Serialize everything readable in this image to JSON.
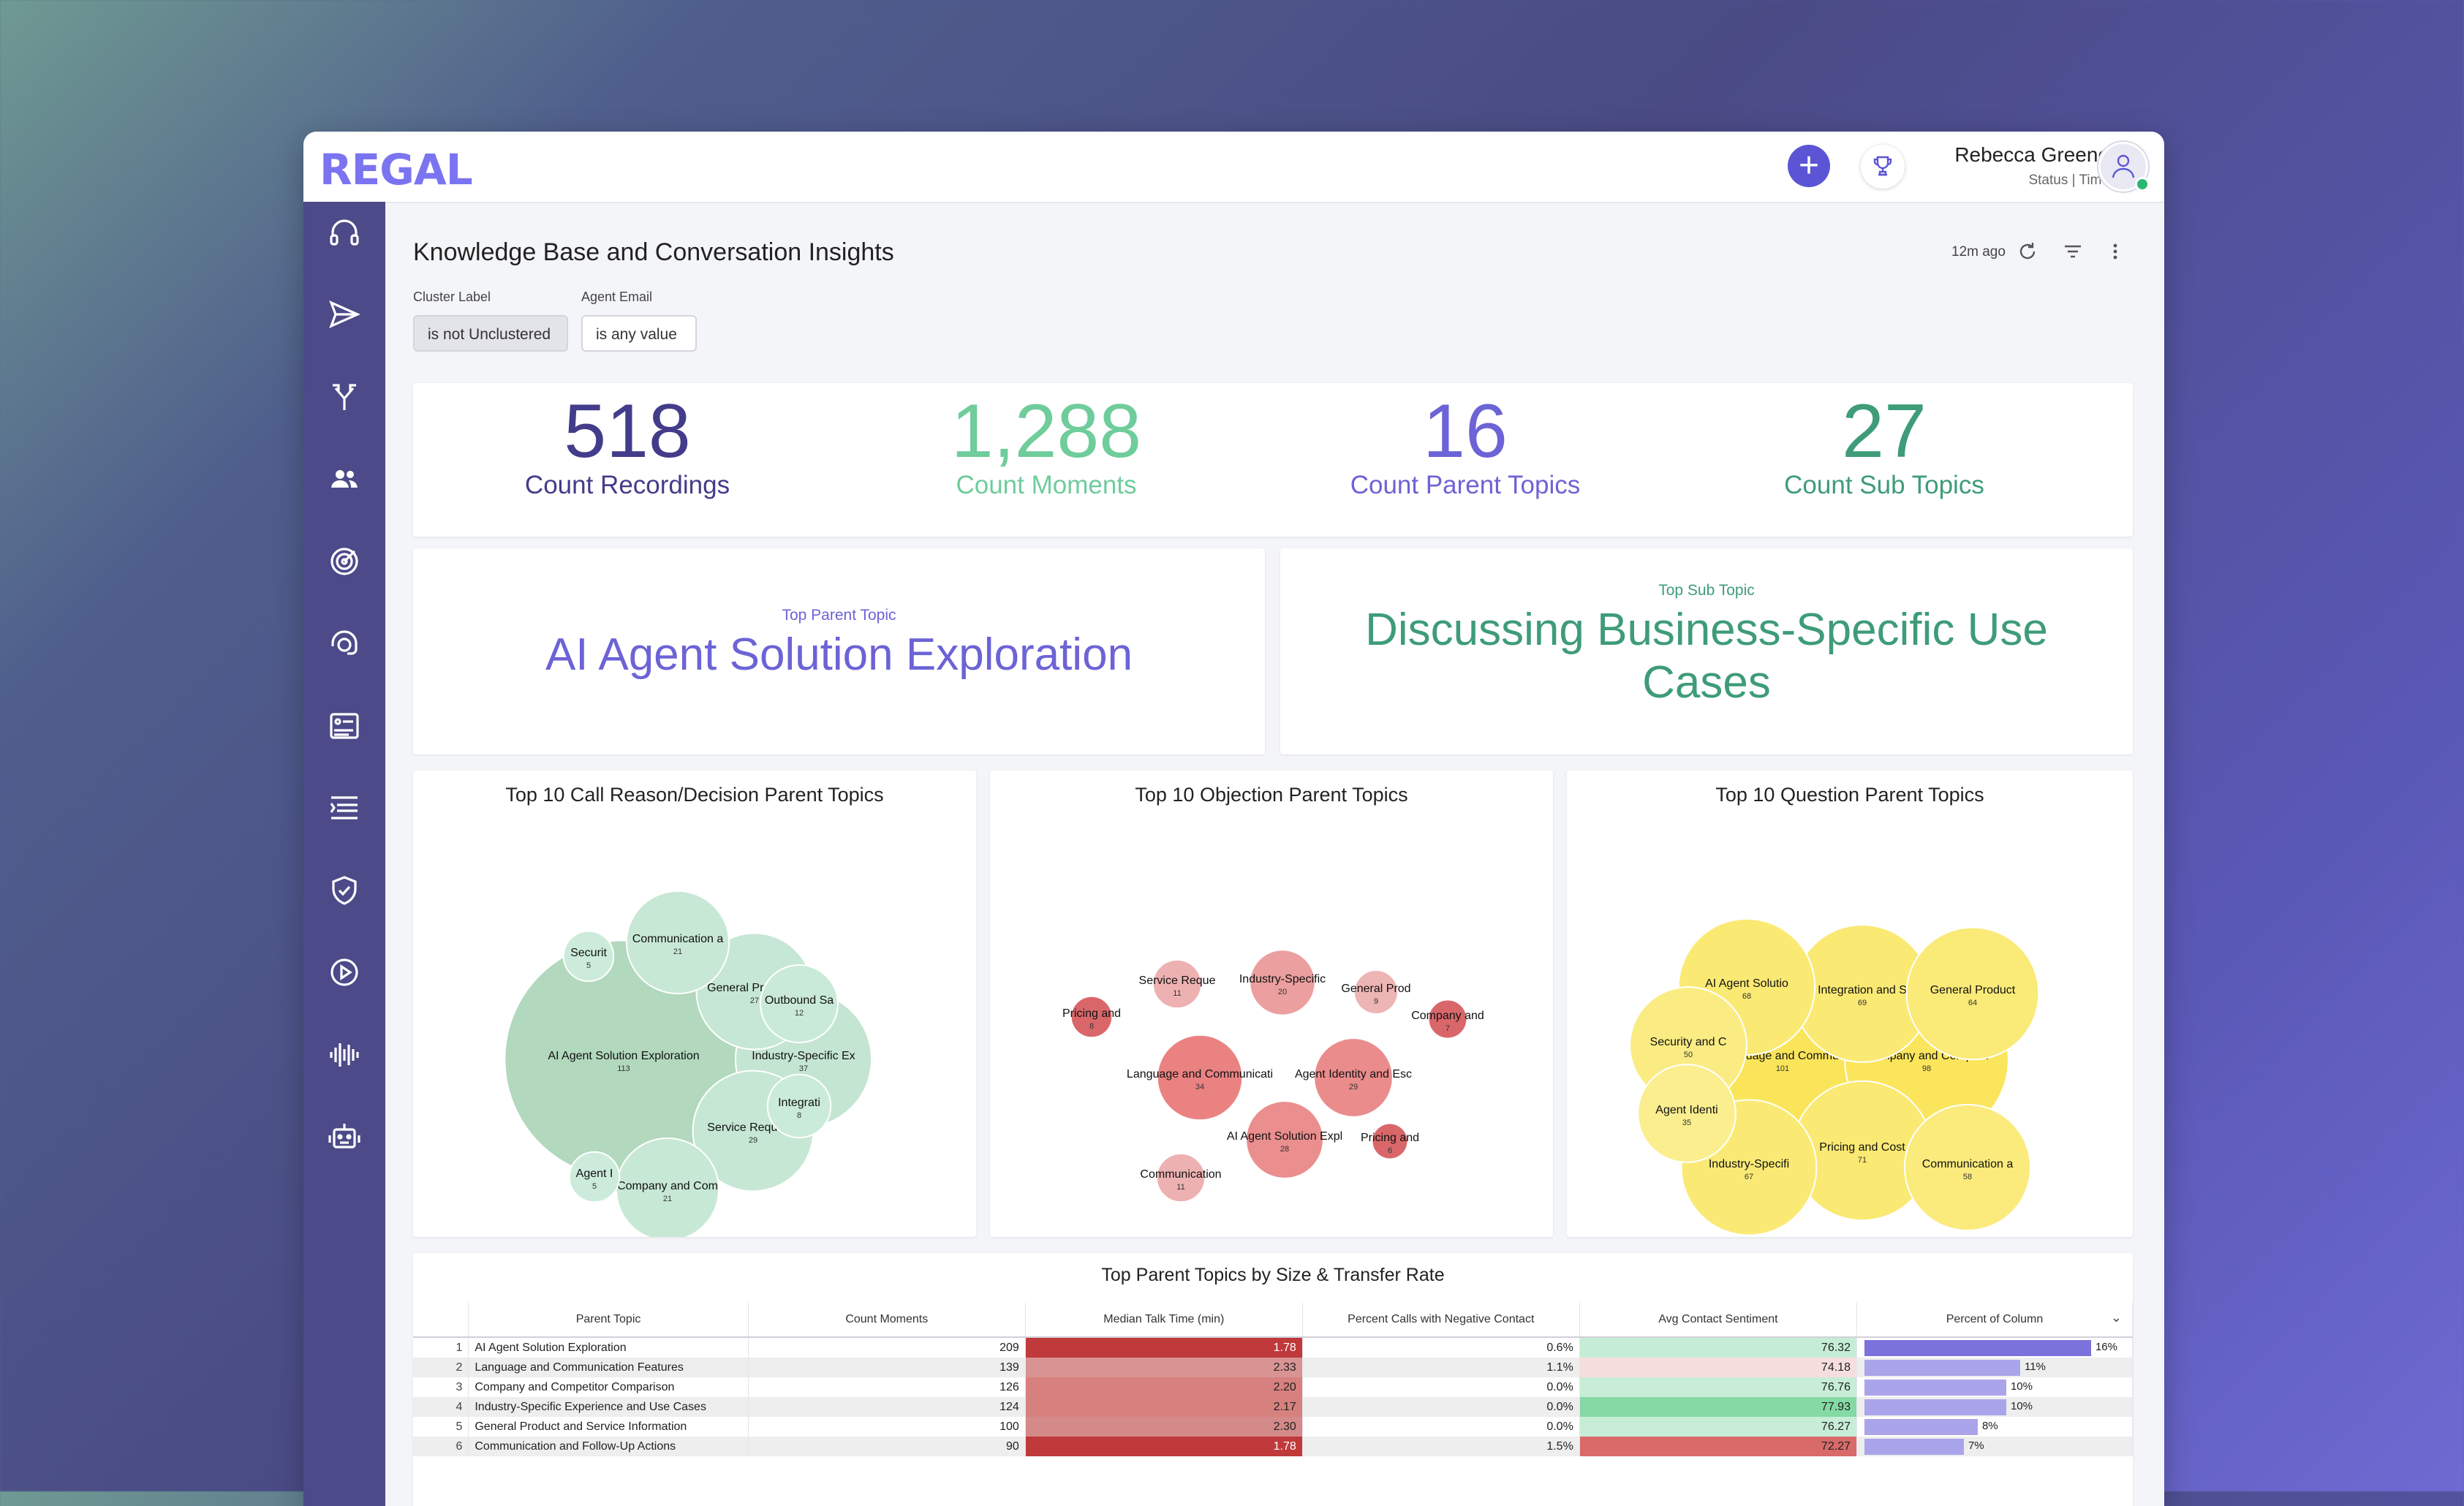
{
  "app": {
    "logo": "REGAL"
  },
  "header": {
    "user_name": "Rebecca Greene",
    "user_status": "Status | Time"
  },
  "sidebar": {
    "icons": [
      "headset-icon",
      "send-icon",
      "branch-icon",
      "users-icon",
      "target-icon",
      "support-agent-icon",
      "id-card-icon",
      "list-icon",
      "shield-check-icon",
      "play-circle-icon",
      "waveform-icon",
      "robot-icon"
    ]
  },
  "page": {
    "title": "Knowledge Base and Conversation Insights",
    "updated": "12m ago",
    "filters": [
      {
        "label": "Cluster Label",
        "value": "is not Unclustered"
      },
      {
        "label": "Agent Email",
        "value": "is any value"
      }
    ]
  },
  "kpis": [
    {
      "value": "518",
      "label": "Count Recordings"
    },
    {
      "value": "1,288",
      "label": "Count Moments"
    },
    {
      "value": "16",
      "label": "Count Parent Topics"
    },
    {
      "value": "27",
      "label": "Count Sub Topics"
    }
  ],
  "top_parent": {
    "label": "Top Parent Topic",
    "value": "AI Agent Solution Exploration"
  },
  "top_sub": {
    "label": "Top Sub Topic",
    "value_line1": "Discussing Business-Specific Use",
    "value_line2": "Cases"
  },
  "chart_data": [
    {
      "type": "bubble",
      "title": "Top 10 Call Reason/Decision Parent Topics",
      "color": "#a8dcc0",
      "points": [
        {
          "label": "AI Agent Solution Exploration",
          "value": 113
        },
        {
          "label": "Industry-Specific Ex",
          "value": 37
        },
        {
          "label": "Service Requests",
          "value": 29
        },
        {
          "label": "General Product a",
          "value": 27
        },
        {
          "label": "Communication a",
          "value": 21
        },
        {
          "label": "Company and Com",
          "value": 21
        },
        {
          "label": "Outbound Sa",
          "value": 12
        },
        {
          "label": "Integrati",
          "value": 8
        },
        {
          "label": "Agent I",
          "value": 5
        },
        {
          "label": "Securit",
          "value": 5
        }
      ]
    },
    {
      "type": "bubble",
      "title": "Top 10 Objection Parent Topics",
      "color": "#e59a9a",
      "points": [
        {
          "label": "Language and Communicati",
          "value": 34
        },
        {
          "label": "Agent Identity and Esc",
          "value": 29
        },
        {
          "label": "AI Agent Solution Expl",
          "value": 28
        },
        {
          "label": "Industry-Specific",
          "value": 20
        },
        {
          "label": "Service Reque",
          "value": 11
        },
        {
          "label": "Communication",
          "value": 11
        },
        {
          "label": "General Prod",
          "value": 9
        },
        {
          "label": "Pricing and",
          "value": 8
        },
        {
          "label": "Company and",
          "value": 7
        },
        {
          "label": "Pricing and",
          "value": 6
        }
      ]
    },
    {
      "type": "bubble",
      "title": "Top 10 Question Parent Topics",
      "color": "#f7e87a",
      "points": [
        {
          "label": "Language and Commun",
          "value": 101
        },
        {
          "label": "Company and Competit",
          "value": 98
        },
        {
          "label": "Pricing and Cost",
          "value": 71
        },
        {
          "label": "Integration and S",
          "value": 69
        },
        {
          "label": "AI Agent Solutio",
          "value": 68
        },
        {
          "label": "Industry-Specifi",
          "value": 67
        },
        {
          "label": "General Product",
          "value": 64
        },
        {
          "label": "Communication a",
          "value": 58
        },
        {
          "label": "Security and C",
          "value": 50
        },
        {
          "label": "Agent Identi",
          "value": 35
        }
      ]
    },
    {
      "type": "table",
      "title": "Top Parent Topics by Size & Transfer Rate",
      "columns": [
        "Parent Topic",
        "Count Moments",
        "Median Talk Time (min)",
        "Percent Calls with Negative Contact",
        "Avg Contact Sentiment",
        "Percent of Column"
      ],
      "rows": [
        {
          "idx": "1",
          "topic": "AI Agent Solution Exploration",
          "count": "209",
          "talk": "1.78",
          "neg": "0.6%",
          "sent": "76.32",
          "pct": "16%",
          "pct_value": 16
        },
        {
          "idx": "2",
          "topic": "Language and Communication Features",
          "count": "139",
          "talk": "2.33",
          "neg": "1.1%",
          "sent": "74.18",
          "pct": "11%",
          "pct_value": 11
        },
        {
          "idx": "3",
          "topic": "Company and Competitor Comparison",
          "count": "126",
          "talk": "2.20",
          "neg": "0.0%",
          "sent": "76.76",
          "pct": "10%",
          "pct_value": 10
        },
        {
          "idx": "4",
          "topic": "Industry-Specific Experience and Use Cases",
          "count": "124",
          "talk": "2.17",
          "neg": "0.0%",
          "sent": "77.93",
          "pct": "10%",
          "pct_value": 10
        },
        {
          "idx": "5",
          "topic": "General Product and Service Information",
          "count": "100",
          "talk": "2.30",
          "neg": "0.0%",
          "sent": "76.27",
          "pct": "8%",
          "pct_value": 8
        },
        {
          "idx": "6",
          "topic": "Communication and Follow-Up Actions",
          "count": "90",
          "talk": "1.78",
          "neg": "1.5%",
          "sent": "72.27",
          "pct": "7%",
          "pct_value": 7
        }
      ]
    }
  ]
}
